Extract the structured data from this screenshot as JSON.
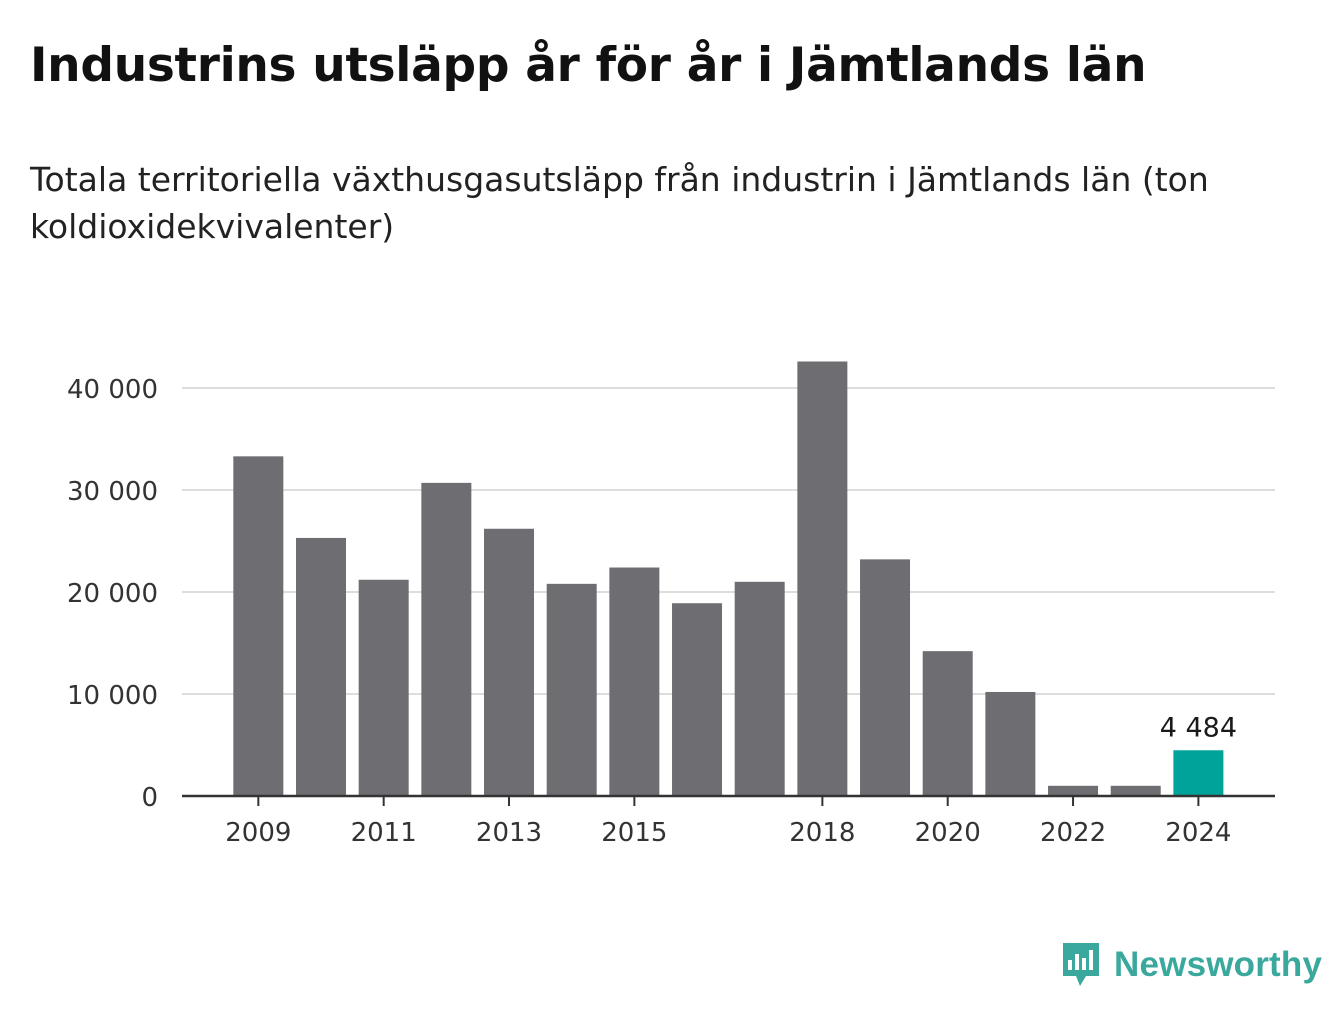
{
  "title": "Industrins utsläpp år för år i Jämtlands län",
  "subtitle": "Totala territoriella växthusgasutsläpp från industrin i Jämtlands län (ton koldioxidekvivalenter)",
  "brand": {
    "name": "Newsworthy",
    "icon": "newsworthy-logo-icon",
    "color": "#3aa89c"
  },
  "chart_data": {
    "type": "bar",
    "categories": [
      2009,
      2010,
      2011,
      2012,
      2013,
      2014,
      2015,
      2016,
      2017,
      2018,
      2019,
      2020,
      2021,
      2022,
      2023,
      2024
    ],
    "values": [
      33300,
      25300,
      21200,
      30700,
      26200,
      20800,
      22400,
      18900,
      21000,
      42600,
      23200,
      14200,
      10200,
      1000,
      1000,
      4484
    ],
    "xticks": [
      "2009",
      "2011",
      "2013",
      "2015",
      "2018",
      "2020",
      "2022",
      "2024"
    ],
    "yticks": [
      0,
      10000,
      20000,
      30000,
      40000
    ],
    "ytick_labels": [
      "0",
      "10 000",
      "20 000",
      "30 000",
      "40 000"
    ],
    "ylim": [
      0,
      45000
    ],
    "grid": true,
    "bar_color": "#6e6d72",
    "highlight_color": "#00a39a",
    "highlight_index": 15,
    "annotation": {
      "category": 2024,
      "text": "4 484"
    }
  }
}
